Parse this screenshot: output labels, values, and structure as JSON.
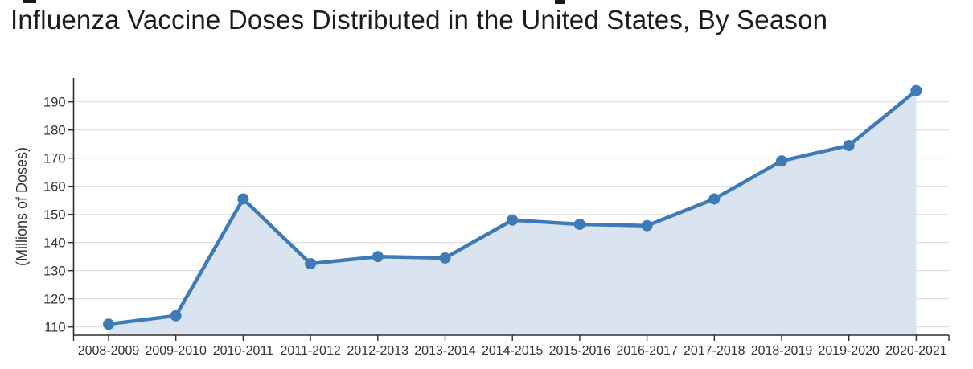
{
  "title": "Influenza Vaccine Doses Distributed in the United States, By Season",
  "chart_data": {
    "type": "area",
    "title": "Influenza Vaccine Doses Distributed in the United States, By Season",
    "categories": [
      "2008-2009",
      "2009-2010",
      "2010-2011",
      "2011-2012",
      "2012-2013",
      "2013-2014",
      "2014-2015",
      "2015-2016",
      "2016-2017",
      "2017-2018",
      "2018-2019",
      "2019-2020",
      "2020-2021"
    ],
    "series": [
      {
        "name": "Influenza vaccine doses distributed (millions)",
        "values": [
          111,
          114,
          155.5,
          132.5,
          135,
          134.5,
          148,
          146.5,
          146,
          155.5,
          169,
          174.5,
          194
        ]
      }
    ],
    "xlabel": "",
    "ylabel": "(Millions of Doses)",
    "y_ticks": [
      110,
      120,
      130,
      140,
      150,
      160,
      170,
      180,
      190
    ],
    "ylim": [
      106.5,
      198.5
    ],
    "grid": "horizontal",
    "legend": "none",
    "marker": "circle",
    "colors": {
      "line": "#3E7BB6",
      "marker": "#3E7BB6",
      "area_fill": "#D9E4F0",
      "gridline": "#D9D9D9",
      "axis": "#2E2E2E",
      "tick_label": "#333333",
      "title_text": "#1C1C1C"
    }
  }
}
